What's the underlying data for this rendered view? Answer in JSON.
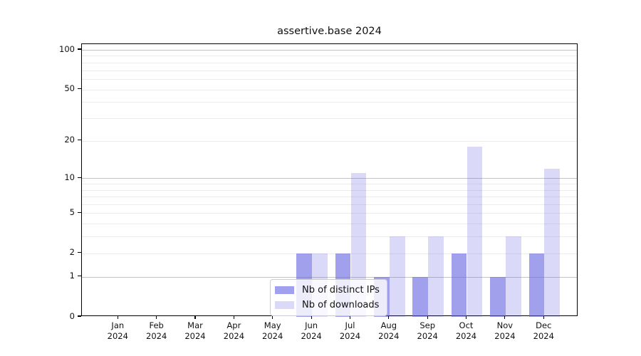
{
  "chart_data": {
    "type": "bar",
    "title": "assertive.base 2024",
    "categories": [
      "Jan",
      "Feb",
      "Mar",
      "Apr",
      "May",
      "Jun",
      "Jul",
      "Aug",
      "Sep",
      "Oct",
      "Nov",
      "Dec"
    ],
    "x_year_label": "2024",
    "series": [
      {
        "name": "Nb of distinct IPs",
        "color": "rgba(102,102,224,0.62)",
        "values": [
          0,
          0,
          0,
          0,
          0,
          2,
          2,
          1,
          1,
          2,
          1,
          2
        ]
      },
      {
        "name": "Nb of downloads",
        "color": "rgba(102,102,224,0.24)",
        "values": [
          0,
          0,
          0,
          0,
          0,
          2,
          11,
          3,
          3,
          18,
          3,
          12
        ]
      }
    ],
    "yscale": "log1p",
    "ylim": [
      0,
      110
    ],
    "ytick_values": [
      0,
      1,
      2,
      5,
      10,
      20,
      50,
      100
    ],
    "ytick_labels": [
      "0",
      "1",
      "2",
      "5",
      "10",
      "20",
      "50",
      "100"
    ],
    "grid": {
      "enabled": true,
      "major_values": [
        1,
        10,
        100
      ],
      "minor_values": [
        2,
        3,
        4,
        5,
        6,
        7,
        8,
        9,
        20,
        30,
        40,
        50,
        60,
        70,
        80,
        90
      ],
      "major_color": "#c3c3c3",
      "minor_color": "#ececec"
    },
    "legend": {
      "position": "inside-bottom-center",
      "entries": [
        {
          "label": "Nb of distinct IPs",
          "color": "rgba(102,102,224,0.62)"
        },
        {
          "label": "Nb of downloads",
          "color": "rgba(102,102,224,0.24)"
        }
      ]
    }
  },
  "colors": {
    "bar_base": "#6666e0",
    "spine": "#000000",
    "text": "#111111",
    "legend_border": "#cccccc",
    "legend_background": "rgba(255,255,255,0.8)"
  }
}
